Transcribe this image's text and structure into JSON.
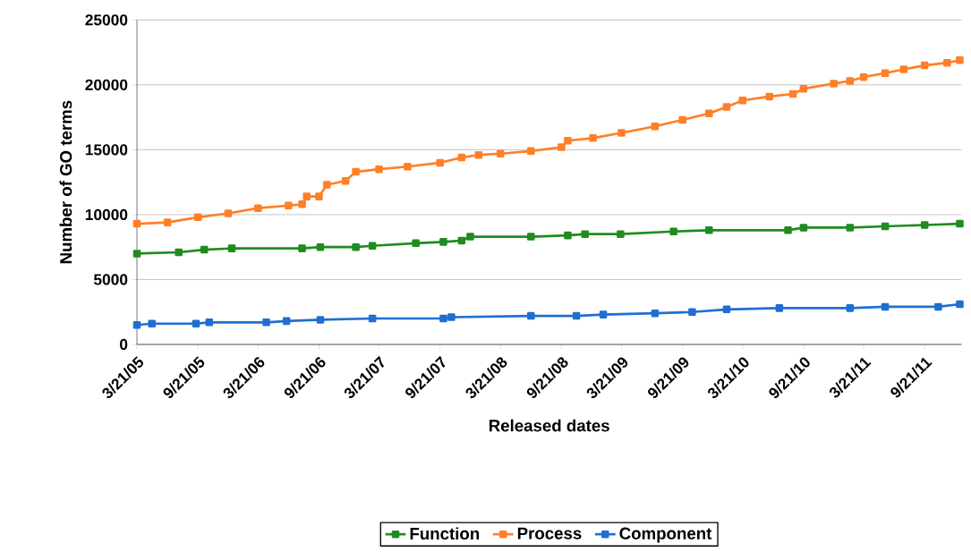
{
  "chart_data": {
    "type": "line",
    "xlabel": "Released dates",
    "ylabel": "Number of GO terms",
    "marker": "square",
    "line_style": "solid",
    "grid": "y",
    "legend": "bottom",
    "xlim": [
      "2005-03-21",
      "2012-01-10"
    ],
    "ylim": [
      0,
      25000
    ],
    "yticks": [
      0,
      5000,
      10000,
      15000,
      20000,
      25000
    ],
    "xticks": [
      {
        "value": "2005-03-21",
        "label": "3/21/05"
      },
      {
        "value": "2005-09-21",
        "label": "9/21/05"
      },
      {
        "value": "2006-03-21",
        "label": "3/21/06"
      },
      {
        "value": "2006-09-21",
        "label": "9/21/06"
      },
      {
        "value": "2007-03-21",
        "label": "3/21/07"
      },
      {
        "value": "2007-09-21",
        "label": "9/21/07"
      },
      {
        "value": "2008-03-21",
        "label": "3/21/08"
      },
      {
        "value": "2008-09-21",
        "label": "9/21/08"
      },
      {
        "value": "2009-03-21",
        "label": "3/21/09"
      },
      {
        "value": "2009-09-21",
        "label": "9/21/09"
      },
      {
        "value": "2010-03-21",
        "label": "3/21/10"
      },
      {
        "value": "2010-09-21",
        "label": "9/21/10"
      },
      {
        "value": "2011-03-21",
        "label": "3/21/11"
      },
      {
        "value": "2011-09-21",
        "label": "9/21/11"
      }
    ],
    "series": [
      {
        "name": "Function",
        "color": "#1e8c1e",
        "x": [
          "2005-03-21",
          "2005-07-25",
          "2005-10-10",
          "2006-01-01",
          "2006-08-01",
          "2006-09-25",
          "2007-01-10",
          "2007-03-01",
          "2007-07-10",
          "2007-10-01",
          "2007-11-25",
          "2007-12-21",
          "2008-06-21",
          "2008-10-10",
          "2008-12-01",
          "2009-03-18",
          "2009-08-25",
          "2009-12-10",
          "2010-08-05",
          "2010-09-21",
          "2011-02-08",
          "2011-05-25",
          "2011-09-21",
          "2012-01-05"
        ],
        "values": [
          7000,
          7100,
          7300,
          7400,
          7400,
          7500,
          7500,
          7600,
          7800,
          7900,
          8000,
          8300,
          8300,
          8400,
          8500,
          8500,
          8700,
          8800,
          8800,
          9000,
          9000,
          9100,
          9200,
          9300
        ]
      },
      {
        "name": "Process",
        "color": "#ff7f27",
        "x": [
          "2005-03-21",
          "2005-06-21",
          "2005-09-21",
          "2005-12-21",
          "2006-03-21",
          "2006-06-21",
          "2006-08-01",
          "2006-08-15",
          "2006-09-21",
          "2006-10-15",
          "2006-12-10",
          "2007-01-10",
          "2007-03-21",
          "2007-06-15",
          "2007-09-21",
          "2007-11-25",
          "2008-01-15",
          "2008-03-21",
          "2008-06-21",
          "2008-09-21",
          "2008-10-10",
          "2008-12-25",
          "2009-03-21",
          "2009-06-30",
          "2009-09-21",
          "2009-12-10",
          "2010-02-01",
          "2010-03-21",
          "2010-06-10",
          "2010-08-20",
          "2010-09-21",
          "2010-12-21",
          "2011-02-08",
          "2011-03-21",
          "2011-05-25",
          "2011-07-20",
          "2011-09-21",
          "2011-11-28",
          "2012-01-05"
        ],
        "values": [
          9300,
          9400,
          9800,
          10100,
          10500,
          10700,
          10800,
          11400,
          11400,
          12300,
          12600,
          13300,
          13500,
          13700,
          14000,
          14400,
          14600,
          14700,
          14900,
          15200,
          15700,
          15900,
          16300,
          16800,
          17300,
          17800,
          18300,
          18800,
          19100,
          19300,
          19700,
          20100,
          20300,
          20600,
          20900,
          21200,
          21500,
          21700,
          21900
        ]
      },
      {
        "name": "Component",
        "color": "#1f6fd1",
        "x": [
          "2005-03-21",
          "2005-05-05",
          "2005-09-15",
          "2005-10-25",
          "2006-04-15",
          "2006-06-15",
          "2006-09-25",
          "2007-03-01",
          "2007-10-01",
          "2007-10-25",
          "2008-06-21",
          "2008-11-05",
          "2009-01-25",
          "2009-06-30",
          "2009-10-20",
          "2010-02-01",
          "2010-07-10",
          "2011-02-08",
          "2011-05-25",
          "2011-11-01",
          "2012-01-05"
        ],
        "values": [
          1500,
          1600,
          1600,
          1700,
          1700,
          1800,
          1900,
          2000,
          2000,
          2100,
          2200,
          2200,
          2300,
          2400,
          2500,
          2700,
          2800,
          2800,
          2900,
          2900,
          3100
        ]
      }
    ]
  }
}
